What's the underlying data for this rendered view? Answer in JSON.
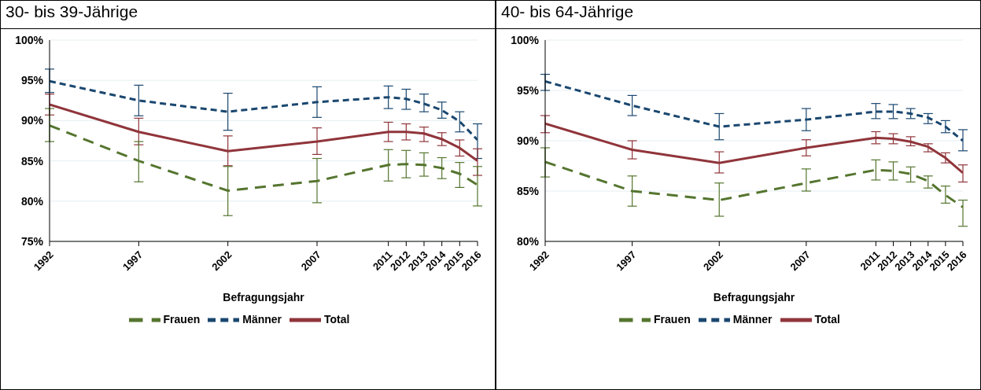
{
  "chart_data": [
    {
      "type": "line",
      "title": "30- bis 39-Jährige",
      "xlabel": "Befragungsjahr",
      "x": [
        1992,
        1997,
        2002,
        2007,
        2011,
        2012,
        2013,
        2014,
        2015,
        2016
      ],
      "xlim": [
        1992,
        2016
      ],
      "xticks": [
        1992,
        1997,
        2002,
        2007,
        2011,
        2012,
        2013,
        2014,
        2015,
        2016
      ],
      "ylim": [
        75,
        100
      ],
      "yticks": [
        {
          "value": 75,
          "label": "75%"
        },
        {
          "value": 80,
          "label": "80%"
        },
        {
          "value": 85,
          "label": "85%"
        },
        {
          "value": 90,
          "label": "90%"
        },
        {
          "value": 95,
          "label": "95%"
        },
        {
          "value": 100,
          "label": "100%"
        }
      ],
      "grid": "y",
      "legend": "bottom",
      "marker": "none",
      "series": [
        {
          "name": "Männer",
          "color": "#1a476f",
          "line_style": "dashed",
          "values": [
            94.9,
            92.5,
            91.1,
            92.3,
            92.9,
            92.7,
            92.1,
            91.3,
            89.9,
            87.6
          ],
          "errors": [
            [
              93.5,
              96.4
            ],
            [
              90.6,
              94.4
            ],
            [
              88.8,
              93.4
            ],
            [
              90.4,
              94.2
            ],
            [
              91.5,
              94.3
            ],
            [
              91.4,
              93.9
            ],
            [
              91.1,
              93.3
            ],
            [
              90.3,
              92.3
            ],
            [
              88.6,
              91.1
            ],
            [
              85.3,
              89.6
            ]
          ]
        },
        {
          "name": "Total",
          "color": "#90353b",
          "line_style": "solid",
          "values": [
            92.0,
            88.6,
            86.2,
            87.4,
            88.6,
            88.6,
            88.4,
            87.7,
            86.6,
            85.0
          ],
          "errors": [
            [
              90.7,
              93.3
            ],
            [
              87.0,
              90.3
            ],
            [
              84.4,
              88.1
            ],
            [
              85.8,
              89.1
            ],
            [
              87.4,
              89.8
            ],
            [
              87.6,
              89.6
            ],
            [
              87.4,
              89.2
            ],
            [
              86.9,
              88.5
            ],
            [
              85.6,
              87.6
            ],
            [
              83.2,
              86.5
            ]
          ]
        },
        {
          "name": "Frauen",
          "color": "#55752f",
          "line_style": "dashed",
          "values": [
            89.4,
            85.0,
            81.3,
            82.5,
            84.5,
            84.6,
            84.5,
            84.1,
            83.4,
            82.0
          ],
          "errors": [
            [
              87.4,
              91.5
            ],
            [
              82.4,
              87.4
            ],
            [
              78.2,
              84.3
            ],
            [
              79.8,
              85.3
            ],
            [
              82.5,
              86.4
            ],
            [
              82.9,
              86.3
            ],
            [
              83.1,
              86.0
            ],
            [
              82.8,
              85.4
            ],
            [
              81.7,
              84.8
            ],
            [
              79.4,
              84.3
            ]
          ]
        }
      ]
    },
    {
      "type": "line",
      "title": "40- bis 64-Jährige",
      "xlabel": "Befragungsjahr",
      "x": [
        1992,
        1997,
        2002,
        2007,
        2011,
        2012,
        2013,
        2014,
        2015,
        2016
      ],
      "xlim": [
        1992,
        2016
      ],
      "xticks": [
        1992,
        1997,
        2002,
        2007,
        2011,
        2012,
        2013,
        2014,
        2015,
        2016
      ],
      "ylim": [
        80,
        100
      ],
      "yticks": [
        {
          "value": 80,
          "label": "80%"
        },
        {
          "value": 85,
          "label": "85%"
        },
        {
          "value": 90,
          "label": "90%"
        },
        {
          "value": 95,
          "label": "95%"
        },
        {
          "value": 100,
          "label": "100%"
        }
      ],
      "grid": "y",
      "legend": "bottom",
      "marker": "none",
      "series": [
        {
          "name": "Männer",
          "color": "#1a476f",
          "line_style": "dashed",
          "values": [
            95.9,
            93.5,
            91.4,
            92.1,
            92.9,
            92.9,
            92.7,
            92.3,
            91.4,
            90.0
          ],
          "errors": [
            [
              95.0,
              96.6
            ],
            [
              92.5,
              94.5
            ],
            [
              90.1,
              92.7
            ],
            [
              91.0,
              93.2
            ],
            [
              92.2,
              93.7
            ],
            [
              92.2,
              93.6
            ],
            [
              92.2,
              93.2
            ],
            [
              91.7,
              92.7
            ],
            [
              90.8,
              92.0
            ],
            [
              89.0,
              91.1
            ]
          ]
        },
        {
          "name": "Total",
          "color": "#90353b",
          "line_style": "solid",
          "values": [
            91.7,
            89.1,
            87.8,
            89.3,
            90.3,
            90.2,
            89.9,
            89.4,
            88.3,
            86.8
          ],
          "errors": [
            [
              90.8,
              92.5
            ],
            [
              88.2,
              90.0
            ],
            [
              86.8,
              88.9
            ],
            [
              88.5,
              90.1
            ],
            [
              89.7,
              90.9
            ],
            [
              89.7,
              90.7
            ],
            [
              89.5,
              90.4
            ],
            [
              88.9,
              89.7
            ],
            [
              87.8,
              88.8
            ],
            [
              85.9,
              87.6
            ]
          ]
        },
        {
          "name": "Frauen",
          "color": "#55752f",
          "line_style": "dashed",
          "values": [
            87.9,
            85.0,
            84.1,
            85.8,
            87.1,
            87.0,
            86.7,
            86.0,
            84.6,
            83.4
          ],
          "errors": [
            [
              86.4,
              89.3
            ],
            [
              83.5,
              86.5
            ],
            [
              82.5,
              85.8
            ],
            [
              85.0,
              87.2
            ],
            [
              86.1,
              88.1
            ],
            [
              86.1,
              87.9
            ],
            [
              85.9,
              87.4
            ],
            [
              85.3,
              86.5
            ],
            [
              83.8,
              85.5
            ],
            [
              81.5,
              84.1
            ]
          ]
        }
      ]
    }
  ]
}
